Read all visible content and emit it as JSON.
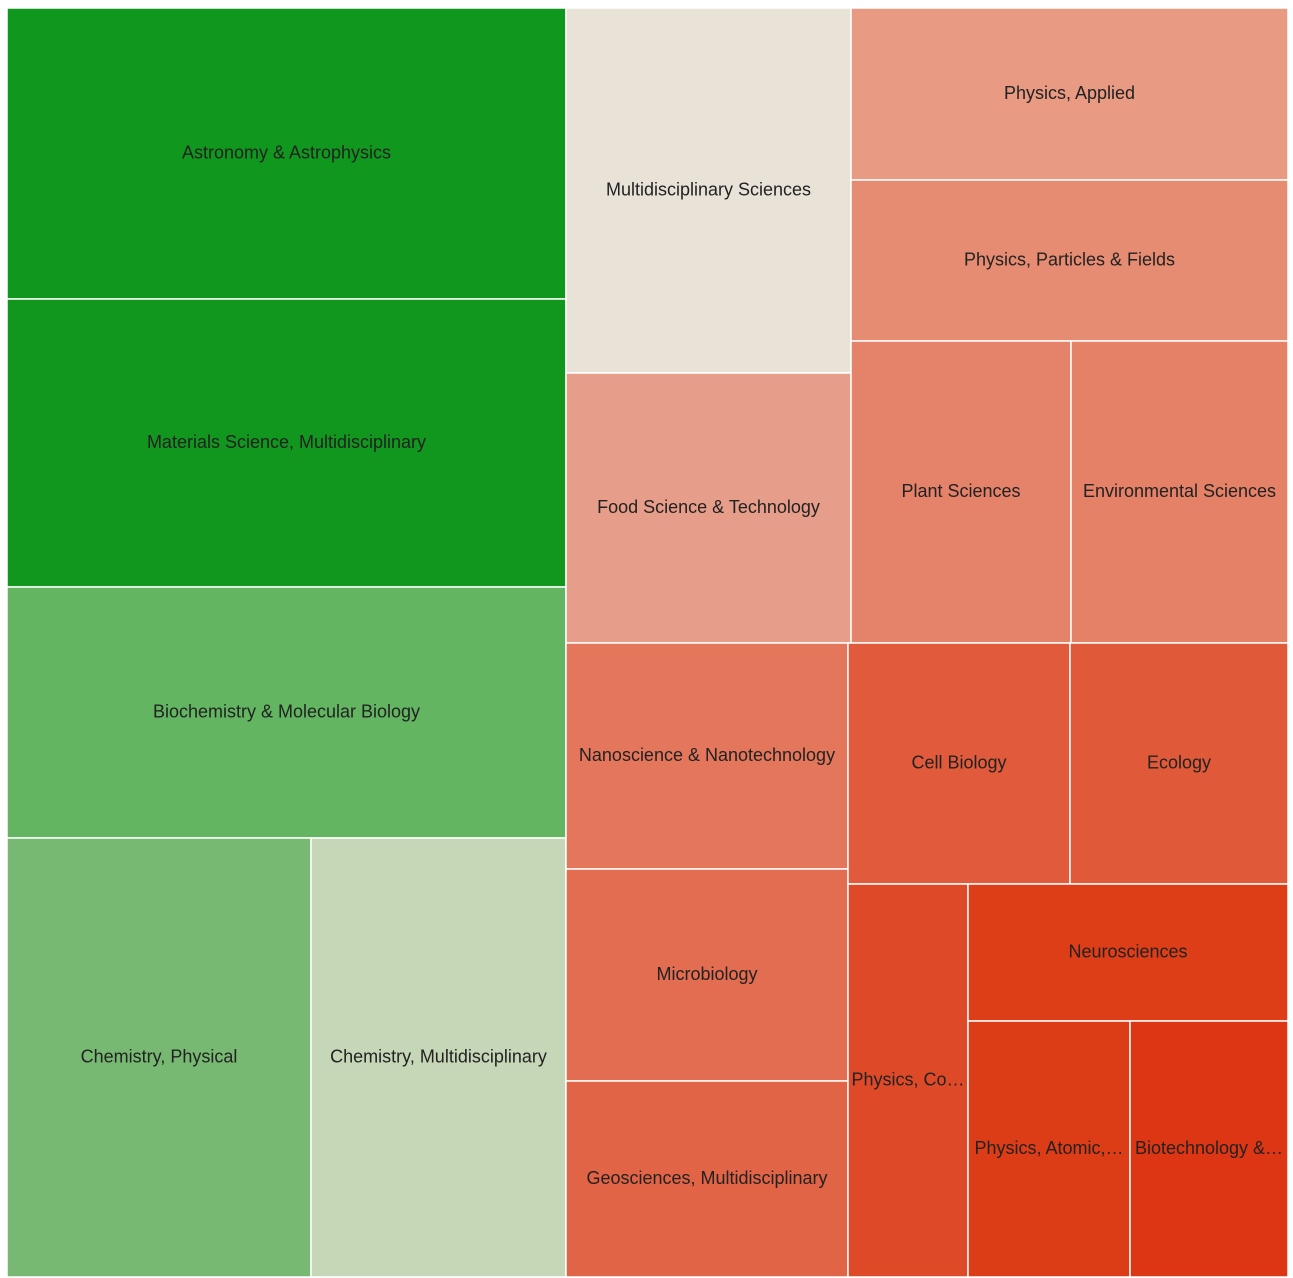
{
  "chart_data": {
    "type": "treemap",
    "tree": {
      "children": [
        {
          "children": [
            {
              "label": "Astronomy & Astrophysics",
              "value": 162669,
              "color": "#10971d"
            },
            {
              "label": "Materials Science, Multidisciplinary",
              "value": 160992,
              "color": "#11961e"
            },
            {
              "label": "Biochemistry & Molecular Biology",
              "value": 140309,
              "color": "#63b562"
            },
            {
              "children": [
                {
                  "label": "Chemistry, Physical",
                  "value": 133456,
                  "color": "#77b972"
                },
                {
                  "label": "Chemistry, Multidisciplinary",
                  "value": 111945,
                  "color": "#c6d7b7"
                }
              ]
            }
          ]
        },
        {
          "children": [
            {
              "children": [
                {
                  "children": [
                    {
                      "label": "Multidisciplinary Sciences",
                      "value": 104025,
                      "color": "#e9e2d7"
                    },
                    {
                      "label": "Food Science & Technology",
                      "value": 76950,
                      "color": "#e69d89"
                    }
                  ]
                },
                {
                  "children": [
                    {
                      "label": "Physics, Applied",
                      "value": 75164,
                      "color": "#e89a82"
                    },
                    {
                      "label": "Physics, Particles & Fields",
                      "value": 70357,
                      "color": "#e68c72"
                    },
                    {
                      "children": [
                        {
                          "label": "Plant Sciences",
                          "value": 66440,
                          "color": "#e5826a"
                        },
                        {
                          "label": "Environmental Sciences",
                          "value": 65534,
                          "color": "#e58167"
                        }
                      ]
                    }
                  ]
                }
              ]
            },
            {
              "children": [
                {
                  "children": [
                    {
                      "label": "Nanoscience & Nanotechnology",
                      "value": 63732,
                      "color": "#e4765c"
                    },
                    {
                      "label": "Microbiology",
                      "value": 59784,
                      "color": "#e26d51"
                    },
                    {
                      "label": "Geosciences, Multidisciplinary",
                      "value": 55272,
                      "color": "#e26446"
                    }
                  ]
                },
                {
                  "children": [
                    {
                      "children": [
                        {
                          "label": "Cell Biology",
                          "value": 53502,
                          "color": "#e05a3b"
                        },
                        {
                          "label": "Ecology",
                          "value": 52538,
                          "color": "#e05a3a"
                        }
                      ]
                    },
                    {
                      "children": [
                        {
                          "label": "Physics, Co…",
                          "value": 47160,
                          "color": "#de4a28"
                        },
                        {
                          "children": [
                            {
                              "label": "Neurosciences",
                              "value": 43840,
                              "color": "#dd3d17"
                            },
                            {
                              "children": [
                                {
                                  "label": "Physics, Atomic,…",
                                  "value": 41472,
                                  "color": "#dd3d16"
                                },
                                {
                                  "label": "Biotechnology &…",
                                  "value": 40448,
                                  "color": "#dd3614"
                                }
                              ]
                            }
                          ]
                        }
                      ]
                    }
                  ]
                }
              ]
            }
          ]
        }
      ]
    }
  }
}
